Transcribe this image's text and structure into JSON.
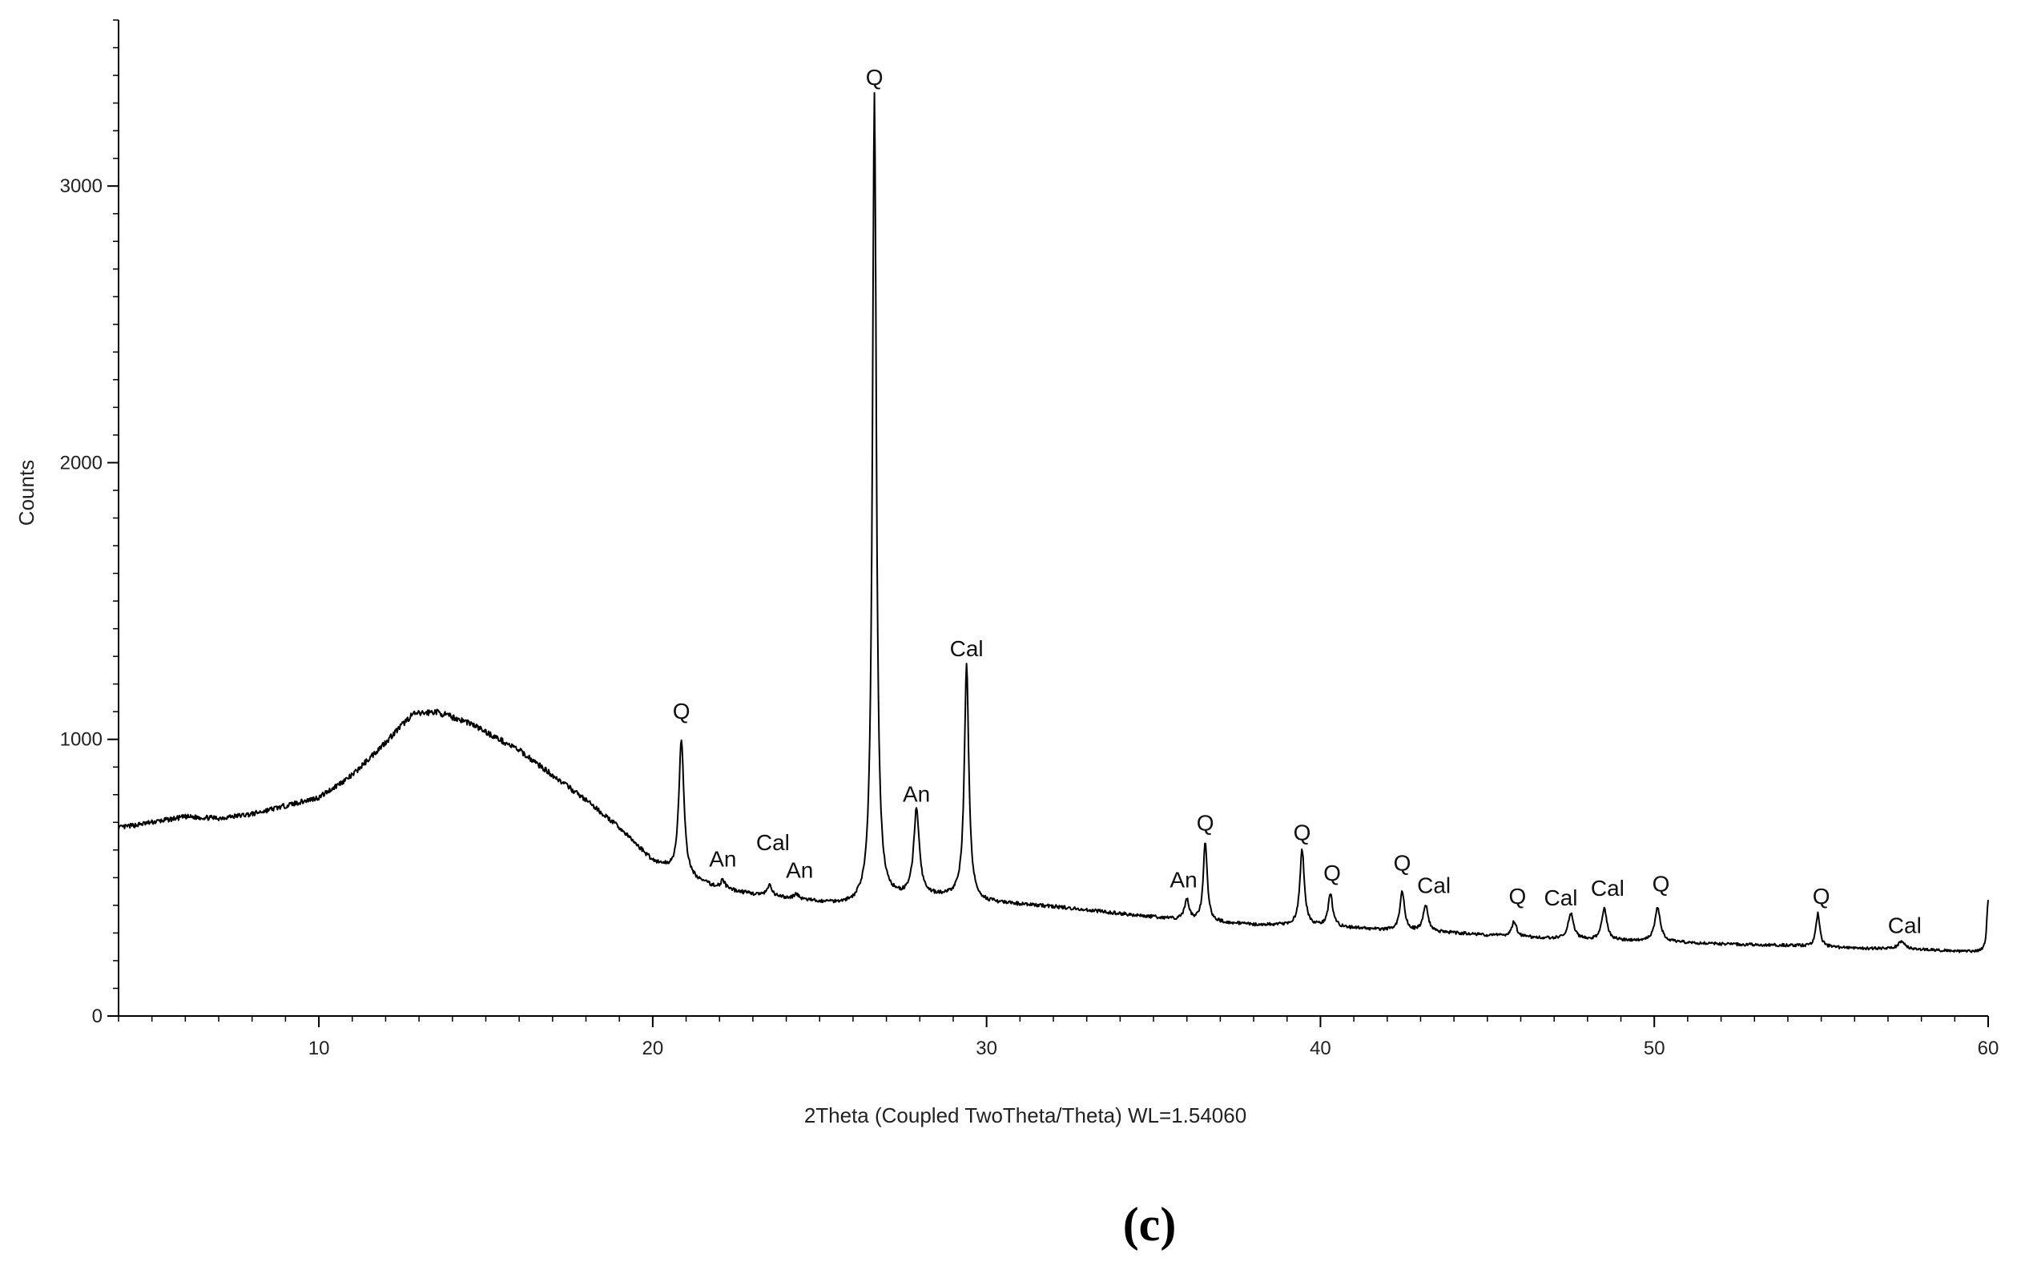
{
  "chart_data": {
    "type": "line",
    "title": "",
    "xlabel": "2Theta (Coupled TwoTheta/Theta) WL=1.54060",
    "ylabel": "Counts",
    "xlim": [
      4,
      60
    ],
    "ylim": [
      0,
      3600
    ],
    "grid": false,
    "x_ticks": [
      10,
      20,
      30,
      40,
      50,
      60
    ],
    "y_ticks": [
      0,
      1000,
      2000,
      3000
    ],
    "x_tick_labels": [
      "10",
      "20",
      "30",
      "40",
      "50",
      "60"
    ],
    "y_tick_labels": [
      "0",
      "1000",
      "2000",
      "3000"
    ],
    "series": [
      {
        "color": "#000000",
        "baseline": [
          [
            4,
            680
          ],
          [
            5,
            700
          ],
          [
            6,
            720
          ],
          [
            7,
            715
          ],
          [
            8,
            730
          ],
          [
            9,
            760
          ],
          [
            10,
            790
          ],
          [
            11,
            870
          ],
          [
            12,
            990
          ],
          [
            12.8,
            1090
          ],
          [
            13.5,
            1100
          ],
          [
            14.5,
            1060
          ],
          [
            16,
            960
          ],
          [
            17,
            870
          ],
          [
            18,
            780
          ],
          [
            19,
            680
          ],
          [
            20,
            560
          ],
          [
            21,
            500
          ],
          [
            22,
            460
          ],
          [
            23,
            440
          ],
          [
            24,
            425
          ],
          [
            25,
            410
          ],
          [
            26,
            400
          ],
          [
            27,
            420
          ],
          [
            28,
            430
          ],
          [
            29,
            430
          ],
          [
            30,
            410
          ],
          [
            32,
            395
          ],
          [
            34,
            370
          ],
          [
            36,
            345
          ],
          [
            38,
            330
          ],
          [
            40,
            325
          ],
          [
            42,
            310
          ],
          [
            44,
            300
          ],
          [
            46,
            285
          ],
          [
            48,
            275
          ],
          [
            50,
            270
          ],
          [
            52,
            260
          ],
          [
            54,
            255
          ],
          [
            56,
            245
          ],
          [
            58,
            240
          ],
          [
            59.9,
            230
          ]
        ],
        "peaks": [
          {
            "x": 20.86,
            "y": 1000,
            "w": 0.09
          },
          {
            "x": 22.1,
            "y": 490,
            "w": 0.08
          },
          {
            "x": 23.5,
            "y": 470,
            "w": 0.08
          },
          {
            "x": 24.3,
            "y": 440,
            "w": 0.08
          },
          {
            "x": 26.64,
            "y": 3330,
            "w": 0.07
          },
          {
            "x": 27.9,
            "y": 740,
            "w": 0.1
          },
          {
            "x": 29.4,
            "y": 1265,
            "w": 0.08
          },
          {
            "x": 36.0,
            "y": 420,
            "w": 0.08
          },
          {
            "x": 36.55,
            "y": 630,
            "w": 0.07
          },
          {
            "x": 39.45,
            "y": 600,
            "w": 0.08
          },
          {
            "x": 40.3,
            "y": 440,
            "w": 0.08
          },
          {
            "x": 42.45,
            "y": 450,
            "w": 0.08
          },
          {
            "x": 43.15,
            "y": 400,
            "w": 0.09
          },
          {
            "x": 45.8,
            "y": 340,
            "w": 0.09
          },
          {
            "x": 47.5,
            "y": 370,
            "w": 0.1
          },
          {
            "x": 48.5,
            "y": 390,
            "w": 0.09
          },
          {
            "x": 50.1,
            "y": 390,
            "w": 0.1
          },
          {
            "x": 54.9,
            "y": 370,
            "w": 0.07
          },
          {
            "x": 57.4,
            "y": 270,
            "w": 0.12
          },
          {
            "x": 60.0,
            "y": 420,
            "w": 0.05
          }
        ]
      }
    ],
    "annotations": [
      {
        "text": "Q",
        "x": 20.86,
        "y": 1075
      },
      {
        "text": "An",
        "x": 22.1,
        "y": 540
      },
      {
        "text": "Cal",
        "x": 23.6,
        "y": 600
      },
      {
        "text": "An",
        "x": 24.4,
        "y": 500
      },
      {
        "text": "Q",
        "x": 26.64,
        "y": 3365
      },
      {
        "text": "An",
        "x": 27.9,
        "y": 775
      },
      {
        "text": "Cal",
        "x": 29.4,
        "y": 1300
      },
      {
        "text": "An",
        "x": 35.9,
        "y": 465
      },
      {
        "text": "Q",
        "x": 36.55,
        "y": 670
      },
      {
        "text": "Q",
        "x": 39.45,
        "y": 635
      },
      {
        "text": "Q",
        "x": 40.35,
        "y": 490
      },
      {
        "text": "Q",
        "x": 42.45,
        "y": 525
      },
      {
        "text": "Cal",
        "x": 43.4,
        "y": 445
      },
      {
        "text": "Q",
        "x": 45.9,
        "y": 405
      },
      {
        "text": "Cal",
        "x": 47.2,
        "y": 400
      },
      {
        "text": "Cal",
        "x": 48.6,
        "y": 435
      },
      {
        "text": "Q",
        "x": 50.2,
        "y": 450
      },
      {
        "text": "Q",
        "x": 55.0,
        "y": 405
      },
      {
        "text": "Cal",
        "x": 57.5,
        "y": 300
      }
    ]
  },
  "panel_label": "(c)"
}
